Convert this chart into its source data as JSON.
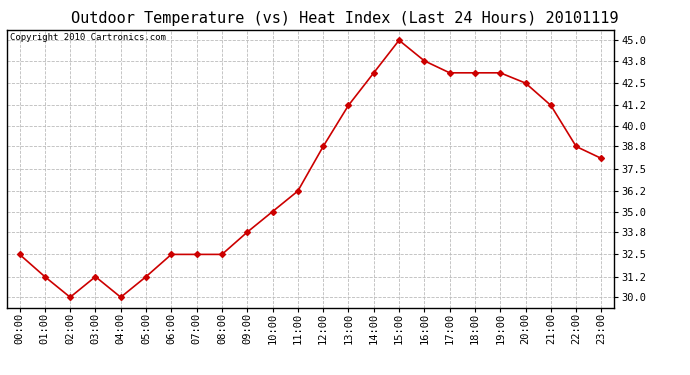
{
  "title": "Outdoor Temperature (vs) Heat Index (Last 24 Hours) 20101119",
  "copyright": "Copyright 2010 Cartronics.com",
  "x_labels": [
    "00:00",
    "01:00",
    "02:00",
    "03:00",
    "04:00",
    "05:00",
    "06:00",
    "07:00",
    "08:00",
    "09:00",
    "10:00",
    "11:00",
    "12:00",
    "13:00",
    "14:00",
    "15:00",
    "16:00",
    "17:00",
    "18:00",
    "19:00",
    "20:00",
    "21:00",
    "22:00",
    "23:00"
  ],
  "y_values": [
    32.5,
    31.2,
    30.0,
    31.2,
    30.0,
    31.2,
    32.5,
    32.5,
    32.5,
    33.8,
    35.0,
    36.2,
    38.8,
    41.2,
    43.1,
    45.0,
    43.8,
    43.1,
    43.1,
    43.1,
    42.5,
    41.2,
    38.8,
    38.1
  ],
  "line_color": "#cc0000",
  "marker": "D",
  "marker_size": 3,
  "ylim_min": 29.4,
  "ylim_max": 45.6,
  "yticks": [
    30.0,
    31.2,
    32.5,
    33.8,
    35.0,
    36.2,
    37.5,
    38.8,
    40.0,
    41.2,
    42.5,
    43.8,
    45.0
  ],
  "background_color": "#ffffff",
  "plot_bg_color": "#ffffff",
  "grid_color": "#bbbbbb",
  "title_fontsize": 11,
  "copyright_fontsize": 6.5,
  "tick_fontsize": 7.5
}
